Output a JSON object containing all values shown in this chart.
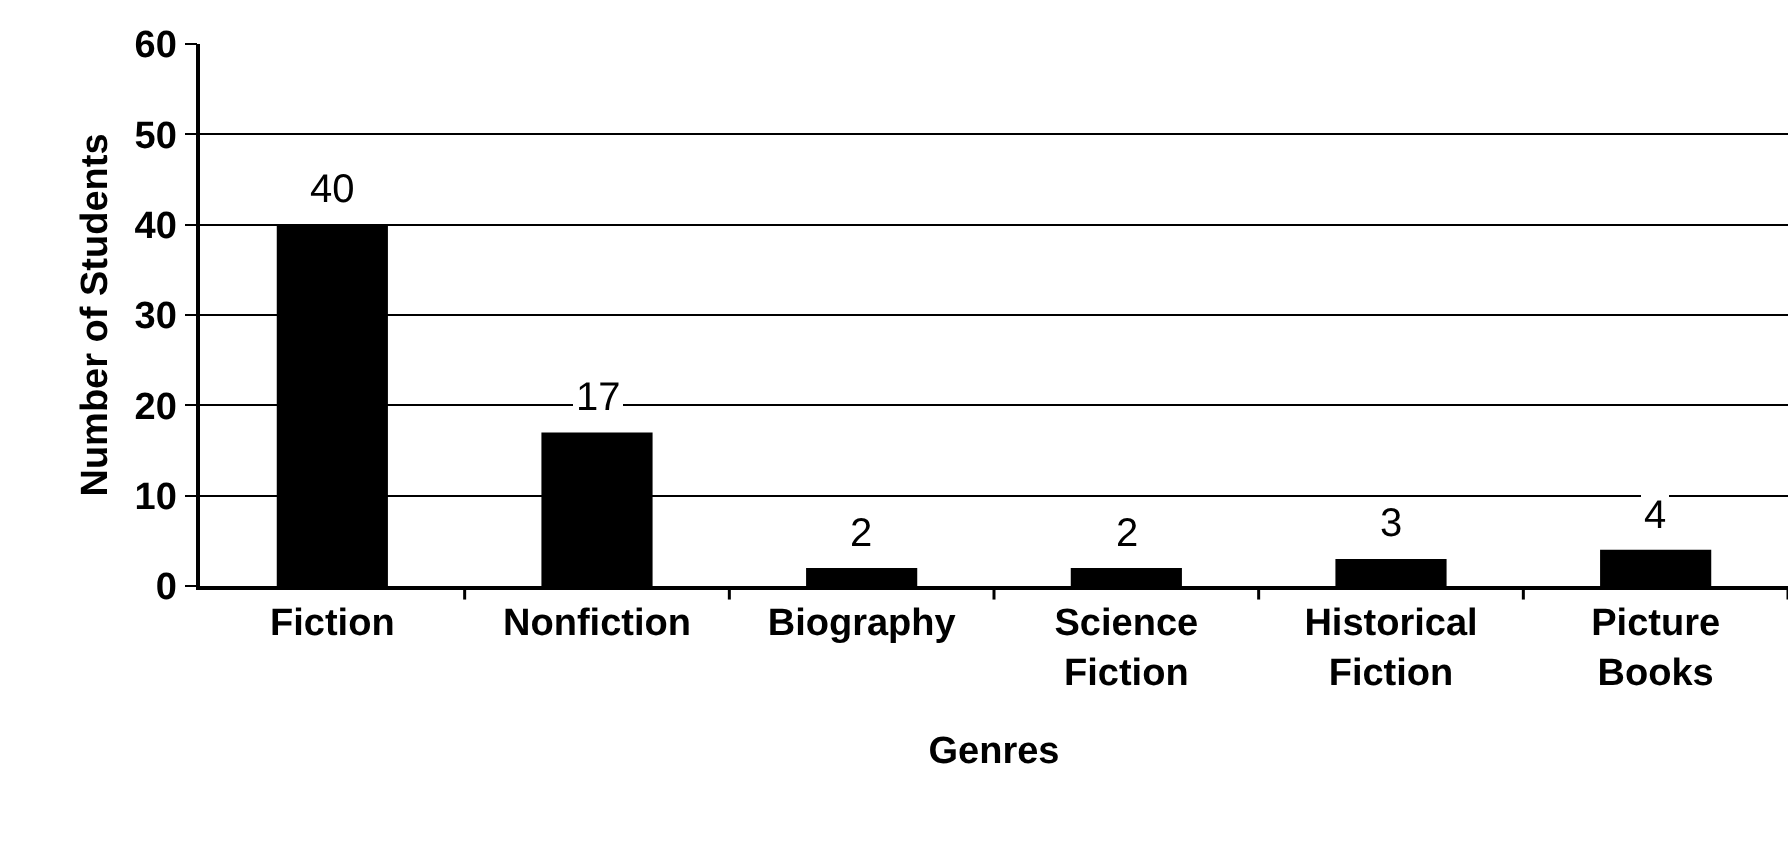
{
  "chart_data": {
    "type": "bar",
    "xlabel": "Genres",
    "ylabel": "Number of Students",
    "categories": [
      "Fiction",
      "Nonfiction",
      "Biography",
      "Science Fiction",
      "Historical Fiction",
      "Picture Books"
    ],
    "values": [
      40,
      17,
      2,
      2,
      3,
      4
    ],
    "color": "#000000",
    "ylim": [
      0,
      60
    ],
    "yticks": [
      0,
      10,
      20,
      30,
      40,
      50,
      60
    ],
    "grid": "y",
    "data_labels": true,
    "legend": false
  }
}
